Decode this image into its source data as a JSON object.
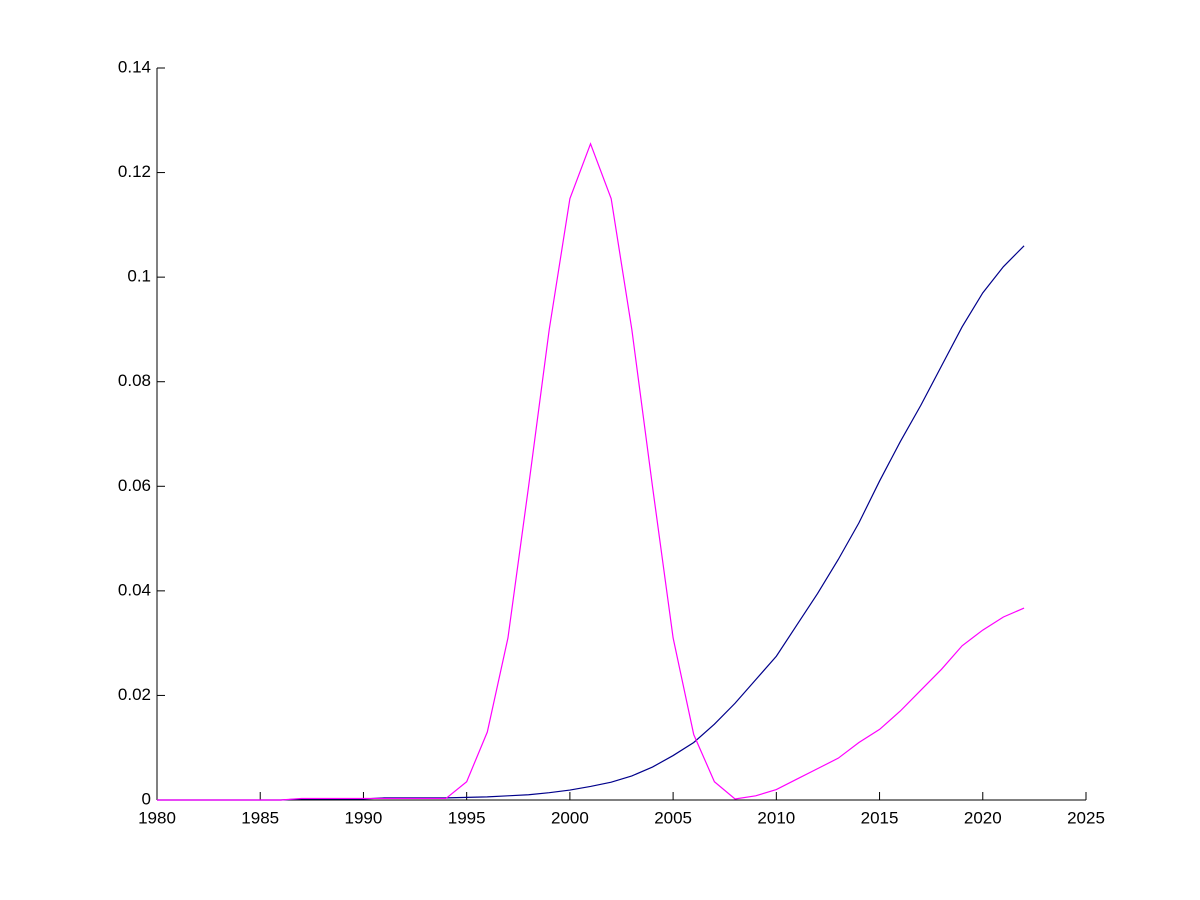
{
  "chart_data": {
    "type": "line",
    "x": [
      1980,
      1981,
      1982,
      1983,
      1984,
      1985,
      1986,
      1987,
      1988,
      1989,
      1990,
      1991,
      1992,
      1993,
      1994,
      1995,
      1996,
      1997,
      1998,
      1999,
      2000,
      2001,
      2002,
      2003,
      2004,
      2005,
      2006,
      2007,
      2008,
      2009,
      2010,
      2011,
      2012,
      2013,
      2014,
      2015,
      2016,
      2017,
      2018,
      2019,
      2020,
      2021,
      2022
    ],
    "series": [
      {
        "color": "#00008b",
        "values": [
          0,
          0,
          0,
          0,
          0,
          0,
          0,
          0.0002,
          0.0002,
          0.0002,
          0.0002,
          0.0004,
          0.0004,
          0.0004,
          0.0004,
          0.0005,
          0.0006,
          0.0008,
          0.001,
          0.0014,
          0.0019,
          0.0026,
          0.0034,
          0.0046,
          0.0063,
          0.0085,
          0.011,
          0.0145,
          0.0185,
          0.023,
          0.0275,
          0.0335,
          0.0395,
          0.046,
          0.053,
          0.061,
          0.0685,
          0.0755,
          0.083,
          0.0905,
          0.097,
          0.102,
          0.106
        ]
      },
      {
        "color": "#ff00ff",
        "values": [
          0,
          0,
          0,
          0,
          0,
          0,
          0,
          0.0003,
          0.0003,
          0.0003,
          0.0003,
          0.0003,
          0.0003,
          0.0003,
          0.0003,
          0.0035,
          0.013,
          0.031,
          0.06,
          0.09,
          0.115,
          0.1255,
          0.115,
          0.09,
          0.06,
          0.031,
          0.0125,
          0.0035,
          0.0002,
          0.0008,
          0.002,
          0.004,
          0.006,
          0.008,
          0.011,
          0.0135,
          0.017,
          0.021,
          0.025,
          0.0295,
          0.0325,
          0.035,
          0.0367
        ]
      }
    ],
    "xlim": [
      1980,
      2025
    ],
    "xticks": [
      1980,
      1985,
      1990,
      1995,
      2000,
      2005,
      2010,
      2015,
      2020,
      2025
    ],
    "ylim": [
      0,
      0.14
    ],
    "yticks": [
      0,
      0.02,
      0.04,
      0.06,
      0.08,
      0.1,
      0.12,
      0.14
    ]
  }
}
